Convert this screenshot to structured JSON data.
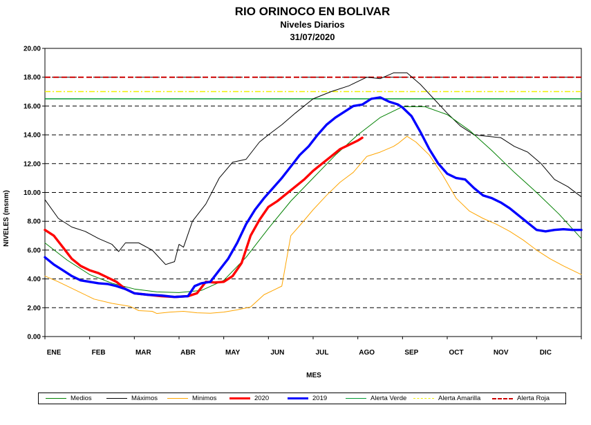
{
  "chart_data": {
    "type": "line",
    "title": "RIO ORINOCO  EN BOLIVAR",
    "subtitle": "Niveles Diarios",
    "date": "31/07/2020",
    "xlabel": "MES",
    "ylabel": "NIVELES  (msnm)",
    "ylim": [
      0,
      20
    ],
    "yticks": [
      "0.00",
      "2.00",
      "4.00",
      "6.00",
      "8.00",
      "10.00",
      "12.00",
      "14.00",
      "16.00",
      "18.00",
      "20.00"
    ],
    "xlim": [
      0,
      12
    ],
    "months": [
      "ENE",
      "FEB",
      "MAR",
      "ABR",
      "MAY",
      "JUN",
      "JUL",
      "AGO",
      "SEP",
      "OCT",
      "NOV",
      "DIC"
    ],
    "grid": "horizontal-dashed",
    "legend_position": "bottom",
    "series": [
      {
        "name": "Medios",
        "color": "#008000",
        "width": 1,
        "dash": "",
        "x": [
          0,
          0.5,
          1,
          1.5,
          2,
          2.5,
          3,
          3.5,
          4,
          4.5,
          5,
          5.5,
          6,
          6.5,
          7,
          7.5,
          8,
          8.5,
          9,
          9.5,
          10,
          10.5,
          11,
          11.5,
          12
        ],
        "y": [
          6.5,
          5.3,
          4.3,
          3.7,
          3.3,
          3.1,
          3.05,
          3.2,
          3.9,
          5.5,
          7.5,
          9.4,
          11.0,
          12.6,
          14.0,
          15.2,
          15.95,
          15.95,
          15.4,
          14.3,
          12.9,
          11.4,
          10.0,
          8.5,
          6.8
        ]
      },
      {
        "name": "Máximos",
        "color": "#000000",
        "width": 1,
        "dash": "",
        "x": [
          0,
          0.3,
          0.6,
          0.9,
          1.2,
          1.5,
          1.65,
          1.8,
          2.1,
          2.4,
          2.7,
          2.9,
          3.0,
          3.1,
          3.3,
          3.6,
          3.9,
          4.2,
          4.5,
          4.8,
          5.0,
          5.3,
          5.6,
          6.0,
          6.4,
          6.8,
          7.2,
          7.5,
          7.8,
          8.1,
          8.4,
          8.7,
          9.0,
          9.3,
          9.6,
          9.9,
          10.2,
          10.5,
          10.8,
          11.1,
          11.4,
          11.7,
          12
        ],
        "y": [
          9.5,
          8.2,
          7.6,
          7.3,
          6.8,
          6.4,
          5.9,
          6.5,
          6.5,
          6.0,
          5.0,
          5.2,
          6.4,
          6.2,
          8.0,
          9.2,
          11.0,
          12.1,
          12.3,
          13.5,
          14.0,
          14.7,
          15.5,
          16.5,
          17.0,
          17.4,
          18.0,
          17.9,
          18.3,
          18.3,
          17.5,
          16.5,
          15.5,
          14.6,
          14.0,
          13.9,
          13.8,
          13.2,
          12.8,
          12.0,
          10.9,
          10.4,
          9.7
        ]
      },
      {
        "name": "Minimos",
        "color": "#ffa500",
        "width": 1,
        "dash": "",
        "x": [
          0,
          0.3,
          0.7,
          1.1,
          1.5,
          1.9,
          2.1,
          2.4,
          2.5,
          2.8,
          3.1,
          3.4,
          3.7,
          4.0,
          4.3,
          4.6,
          4.9,
          5.1,
          5.3,
          5.5,
          5.7,
          6.0,
          6.3,
          6.6,
          6.9,
          7.2,
          7.5,
          7.8,
          7.9,
          8.1,
          8.3,
          8.6,
          8.9,
          9.2,
          9.5,
          9.8,
          10.1,
          10.4,
          10.7,
          11.0,
          11.3,
          11.6,
          12
        ],
        "y": [
          4.2,
          3.8,
          3.2,
          2.6,
          2.3,
          2.1,
          1.8,
          1.75,
          1.6,
          1.7,
          1.75,
          1.65,
          1.62,
          1.7,
          1.85,
          2.05,
          2.9,
          3.2,
          3.5,
          7.0,
          7.7,
          8.8,
          9.8,
          10.7,
          11.4,
          12.5,
          12.8,
          13.2,
          13.4,
          13.9,
          13.5,
          12.6,
          11.2,
          9.6,
          8.7,
          8.2,
          7.8,
          7.3,
          6.7,
          6.0,
          5.4,
          4.9,
          4.3
        ]
      },
      {
        "name": "2020",
        "color": "#ff0000",
        "width": 3.4,
        "dash": "",
        "x": [
          0,
          0.2,
          0.4,
          0.6,
          0.8,
          1.0,
          1.2,
          1.4,
          1.6,
          1.8,
          2.0,
          2.3,
          2.6,
          2.9,
          3.2,
          3.4,
          3.6,
          3.8,
          4.0,
          4.2,
          4.4,
          4.6,
          4.8,
          5.0,
          5.2,
          5.4,
          5.6,
          5.8,
          6.0,
          6.2,
          6.4,
          6.6,
          6.8,
          7.0,
          7.1
        ],
        "y": [
          7.4,
          7.0,
          6.2,
          5.4,
          4.9,
          4.6,
          4.4,
          4.1,
          3.8,
          3.3,
          3.0,
          2.9,
          2.8,
          2.75,
          2.8,
          3.0,
          3.8,
          3.75,
          3.8,
          4.2,
          5.1,
          7.0,
          8.1,
          9.0,
          9.4,
          9.9,
          10.4,
          10.9,
          11.5,
          12.0,
          12.5,
          13.0,
          13.3,
          13.6,
          13.8
        ]
      },
      {
        "name": "2019",
        "color": "#0000ff",
        "width": 3.4,
        "dash": "",
        "x": [
          0,
          0.2,
          0.4,
          0.6,
          0.8,
          1.0,
          1.2,
          1.4,
          1.6,
          1.8,
          2.0,
          2.3,
          2.6,
          2.9,
          3.2,
          3.35,
          3.5,
          3.7,
          3.9,
          4.1,
          4.3,
          4.5,
          4.7,
          4.9,
          5.1,
          5.3,
          5.5,
          5.7,
          5.9,
          6.1,
          6.3,
          6.5,
          6.7,
          6.9,
          7.1,
          7.3,
          7.5,
          7.7,
          7.9,
          8.0,
          8.2,
          8.4,
          8.6,
          8.8,
          9.0,
          9.2,
          9.4,
          9.6,
          9.8,
          10.0,
          10.2,
          10.4,
          10.6,
          10.8,
          11.0,
          11.2,
          11.4,
          11.6,
          11.8,
          12
        ],
        "y": [
          5.5,
          5.0,
          4.6,
          4.2,
          3.9,
          3.8,
          3.7,
          3.65,
          3.5,
          3.3,
          3.0,
          2.9,
          2.85,
          2.75,
          2.8,
          3.5,
          3.7,
          3.8,
          4.6,
          5.4,
          6.5,
          7.8,
          8.8,
          9.6,
          10.3,
          11.0,
          11.8,
          12.6,
          13.2,
          14.0,
          14.7,
          15.2,
          15.6,
          16.0,
          16.1,
          16.5,
          16.6,
          16.3,
          16.1,
          15.9,
          15.3,
          14.2,
          13.0,
          12.0,
          11.3,
          11.0,
          10.9,
          10.3,
          9.8,
          9.6,
          9.3,
          8.9,
          8.4,
          7.9,
          7.4,
          7.3,
          7.4,
          7.45,
          7.4,
          7.4
        ]
      },
      {
        "name": "Alerta Verde",
        "color": "#009933",
        "width": 1.5,
        "dash": "",
        "level": 16.5
      },
      {
        "name": "Alerta Amarilla",
        "color": "#f0f000",
        "width": 1.5,
        "dash": "8 3 2 3",
        "level": 17.0
      },
      {
        "name": "Alerta Roja",
        "color": "#cc0000",
        "width": 2,
        "dash": "8 4",
        "level": 18.0
      }
    ]
  }
}
